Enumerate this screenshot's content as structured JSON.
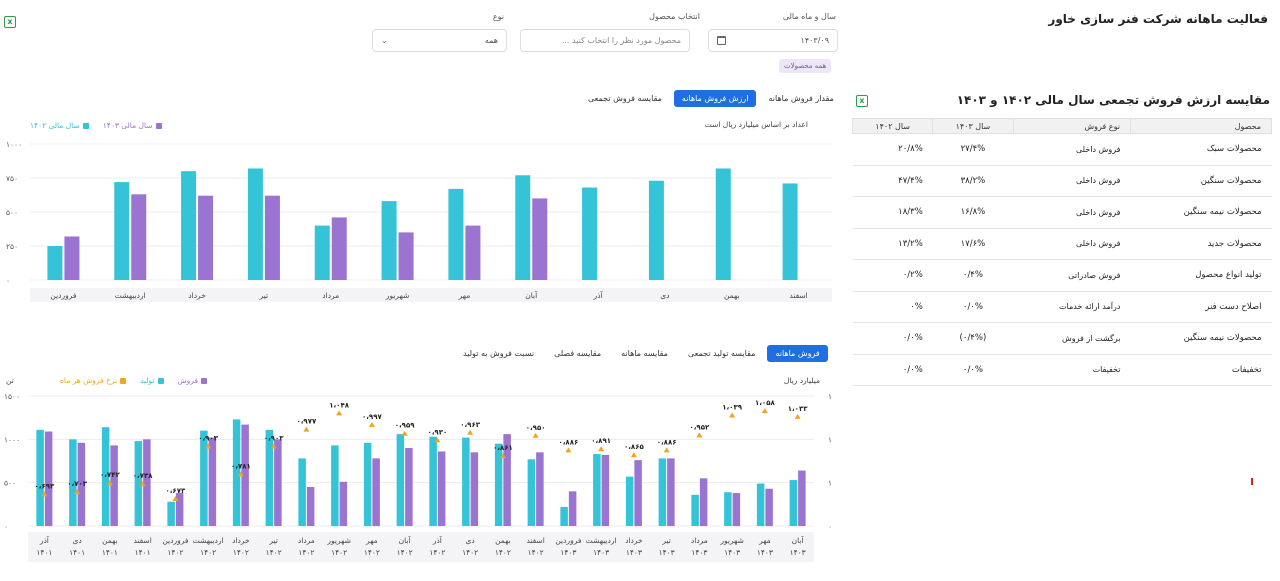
{
  "page_title": "فعالیت ماهانه شرکت فنر سازی خاور",
  "filters": {
    "date_label": "سال و ماه مالی",
    "date_value": "۱۴۰۳/۰۹",
    "product_label": "انتخاب محصول",
    "product_placeholder": "محصول مورد نظر را انتخاب کنید ...",
    "type_label": "نوع",
    "type_value": "همه",
    "chip": "همه محصولات"
  },
  "chart1": {
    "tabs": [
      "مقدار فروش ماهانه",
      "ارزش فروش ماهانه",
      "مقایسه فروش تجمعی"
    ],
    "active_tab": 1,
    "subtitle": "اعداد بر اساس میلیارد ریال است",
    "legend": [
      "سال مالی ۱۴۰۳",
      "سال مالی ۱۴۰۲"
    ],
    "colors": {
      "y1403": "#9a74d0",
      "y1402": "#34c3d7"
    },
    "yticks": [
      "۰",
      "۲۵۰",
      "۵۰۰",
      "۷۵۰",
      "۱۰۰۰"
    ]
  },
  "chart2": {
    "tabs": [
      "فروش ماهانه",
      "مقایسه تولید تجمعی",
      "مقایسه ماهانه",
      "مقایسه فصلی",
      "نسبت فروش به تولید"
    ],
    "active_tab": 0,
    "left_unit": "میلیارد ریال",
    "right_unit": "تن",
    "legend": [
      "فروش",
      "تولید",
      "نرخ فروش هر ماه"
    ],
    "colors": {
      "sales": "#9a74d0",
      "production": "#34c3d7",
      "rate": "#f4a31b"
    },
    "left_ticks": [
      "۰",
      "۵۰۰",
      "۱۰۰۰",
      "۱۵۰۰"
    ],
    "right_ticks": [
      "۰",
      "۱",
      "۱",
      "۱"
    ]
  },
  "chart_data": [
    {
      "type": "bar",
      "title": "ارزش فروش ماهانه",
      "ylim": [
        0,
        1000
      ],
      "categories": [
        "اسفند",
        "بهمن",
        "دی",
        "آذر",
        "آبان",
        "مهر",
        "شهریور",
        "مرداد",
        "تیر",
        "خرداد",
        "اردیبهشت",
        "فروردین"
      ],
      "series": [
        {
          "name": "سال مالی ۱۴۰۲",
          "values": [
            710,
            820,
            730,
            680,
            770,
            670,
            580,
            400,
            820,
            800,
            720,
            250
          ]
        },
        {
          "name": "سال مالی ۱۴۰۳",
          "values": [
            0,
            0,
            0,
            0,
            600,
            400,
            350,
            460,
            620,
            620,
            630,
            320
          ]
        }
      ]
    },
    {
      "type": "bar",
      "title": "فروش ماهانه",
      "ylim": [
        0,
        1500
      ],
      "categories": [
        "آبان ۱۴۰۳",
        "مهر ۱۴۰۳",
        "شهریور ۱۴۰۳",
        "مرداد ۱۴۰۳",
        "تیر ۱۴۰۳",
        "خرداد ۱۴۰۳",
        "اردیبهشت ۱۴۰۳",
        "فروردین ۱۴۰۳",
        "اسفند ۱۴۰۲",
        "بهمن ۱۴۰۲",
        "دی ۱۴۰۲",
        "آذر ۱۴۰۲",
        "آبان ۱۴۰۲",
        "مهر ۱۴۰۲",
        "شهریور ۱۴۰۲",
        "مرداد ۱۴۰۲",
        "تیر ۱۴۰۲",
        "خرداد ۱۴۰۲",
        "اردیبهشت ۱۴۰۲",
        "فروردین ۱۴۰۲",
        "اسفند ۱۴۰۱",
        "بهمن ۱۴۰۱",
        "دی ۱۴۰۱",
        "آذر ۱۴۰۱"
      ],
      "series": [
        {
          "name": "تولید",
          "values": [
            530,
            490,
            390,
            360,
            780,
            570,
            830,
            220,
            770,
            950,
            1020,
            1030,
            1060,
            960,
            930,
            780,
            1110,
            1230,
            1100,
            280,
            980,
            1140,
            1000,
            1110
          ]
        },
        {
          "name": "فروش",
          "values": [
            640,
            430,
            380,
            550,
            780,
            760,
            820,
            400,
            850,
            1060,
            850,
            860,
            900,
            780,
            510,
            450,
            1000,
            1170,
            1020,
            380,
            1000,
            930,
            960,
            1090
          ]
        },
        {
          "name": "نرخ فروش هر ماه",
          "values": [
            1.033,
            1.058,
            1.039,
            0.952,
            0.886,
            0.865,
            0.891,
            0.886,
            0.95,
            0.861,
            0.963,
            0.93,
            0.959,
            0.997,
            1.048,
            0.977,
            0.903,
            0.781,
            0.903,
            0.673,
            0.738,
            0.742,
            0.703,
            0.693
          ]
        }
      ],
      "rate_labels": [
        "۱،۰۳۳",
        "۱،۰۵۸",
        "۱،۰۳۹",
        "۰،۹۵۲",
        "۰،۸۸۶",
        "۰،۸۶۵",
        "۰،۸۹۱",
        "۰،۸۸۶",
        "۰،۹۵۰",
        "۰،۸۶۱",
        "۰،۹۶۳",
        "۰،۹۳۰",
        "۰،۹۵۹",
        "۰،۹۹۷",
        "۱،۰۴۸",
        "۰،۹۷۷",
        "۰،۹۰۳",
        "۰،۷۸۱",
        "۰،۹۰۳",
        "۰،۶۷۳",
        "۰،۷۳۸",
        "۰،۷۴۲",
        "۰،۷۰۳",
        "۰،۶۹۳"
      ]
    }
  ],
  "cat2_month": [
    "آبان",
    "مهر",
    "شهریور",
    "مرداد",
    "تیر",
    "خرداد",
    "اردیبهشت",
    "فروردین",
    "اسفند",
    "بهمن",
    "دی",
    "آذر",
    "آبان",
    "مهر",
    "شهریور",
    "مرداد",
    "تیر",
    "خرداد",
    "اردیبهشت",
    "فروردین",
    "اسفند",
    "بهمن",
    "دی",
    "آذر"
  ],
  "cat2_year": [
    "۱۴۰۳",
    "۱۴۰۳",
    "۱۴۰۳",
    "۱۴۰۳",
    "۱۴۰۳",
    "۱۴۰۳",
    "۱۴۰۳",
    "۱۴۰۳",
    "۱۴۰۲",
    "۱۴۰۲",
    "۱۴۰۲",
    "۱۴۰۲",
    "۱۴۰۲",
    "۱۴۰۲",
    "۱۴۰۲",
    "۱۴۰۲",
    "۱۴۰۲",
    "۱۴۰۲",
    "۱۴۰۲",
    "۱۴۰۲",
    "۱۴۰۱",
    "۱۴۰۱",
    "۱۴۰۱",
    "۱۴۰۱"
  ],
  "table": {
    "title": "مقایسه ارزش فروش تجمعی سال مالی ۱۴۰۲ و ۱۴۰۳",
    "headers": [
      "محصول",
      "نوع فروش",
      "سال ۱۴۰۳",
      "سال ۱۴۰۲"
    ],
    "rows": [
      [
        "محصولات سبک",
        "فروش داخلی",
        "۲۷/۴%",
        "۲۰/۸%"
      ],
      [
        "محصولات سنگین",
        "فروش داخلی",
        "۳۸/۲%",
        "۴۷/۴%"
      ],
      [
        "محصولات نیمه سنگین",
        "فروش داخلی",
        "۱۶/۸%",
        "۱۸/۳%"
      ],
      [
        "محصولات جدید",
        "فروش داخلی",
        "۱۷/۶%",
        "۱۳/۲%"
      ],
      [
        "تولید انواع محصول",
        "فروش صادراتی",
        "۰/۴%",
        "۰/۲%"
      ],
      [
        "اصلاح دست فنر",
        "درآمد ارائه خدمات",
        "۰/۰%",
        "۰%"
      ],
      [
        "محصولات نیمه سنگین",
        "برگشت از فروش",
        "(۰/۴%)",
        "۰/۰%"
      ],
      [
        "تخفیفات",
        "تخفیفات",
        "۰/۰%",
        "۰/۰%"
      ]
    ]
  }
}
